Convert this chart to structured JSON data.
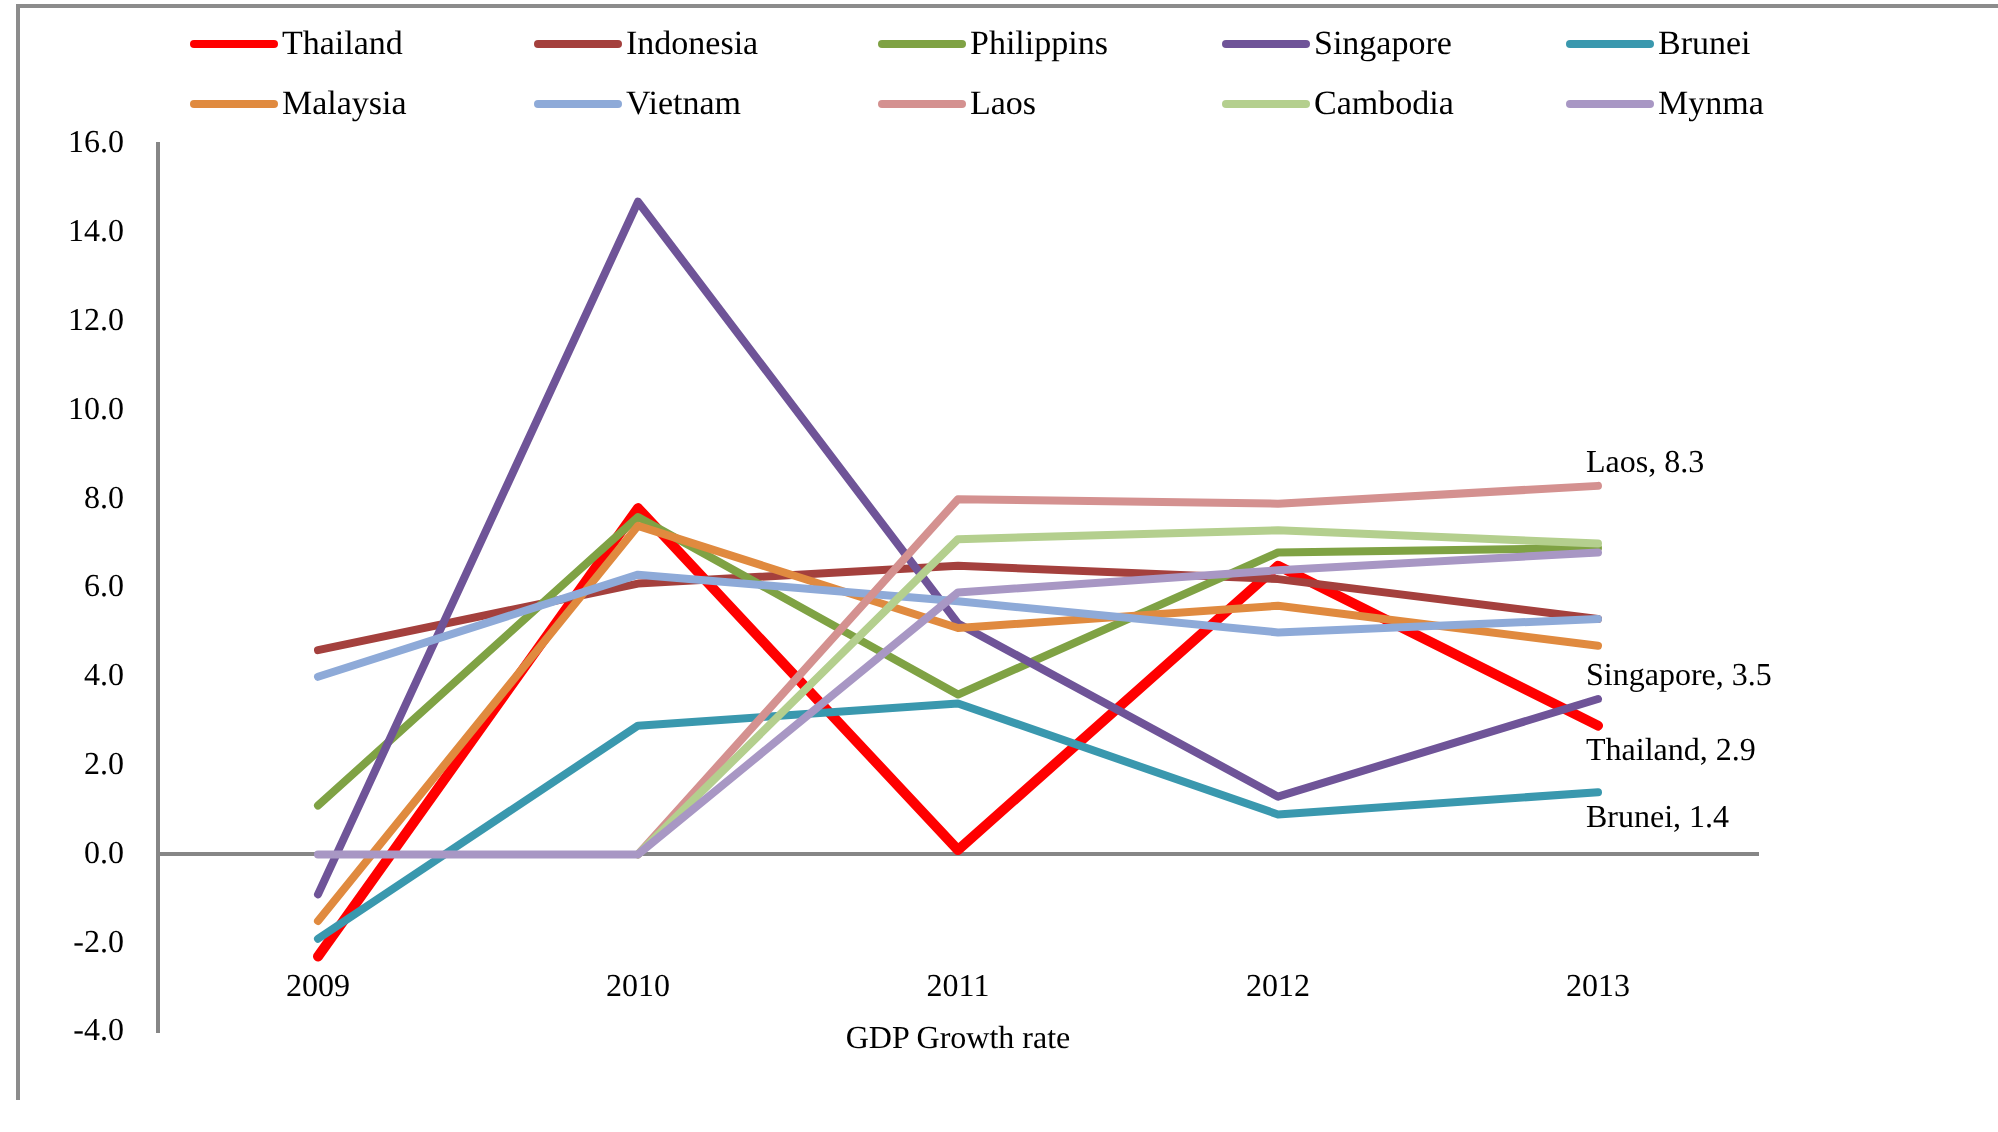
{
  "chart_data": {
    "type": "line",
    "xlabel": "GDP Growth rate",
    "categories": [
      "2009",
      "2010",
      "2011",
      "2012",
      "2013"
    ],
    "ylim": [
      -4,
      16
    ],
    "yticks": [
      {
        "value": -4,
        "label": "-4.0"
      },
      {
        "value": -2,
        "label": "-2.0"
      },
      {
        "value": 0,
        "label": "0.0"
      },
      {
        "value": 2,
        "label": "2.0"
      },
      {
        "value": 4,
        "label": "4.0"
      },
      {
        "value": 6,
        "label": "6.0"
      },
      {
        "value": 8,
        "label": "8.0"
      },
      {
        "value": 10,
        "label": "10.0"
      },
      {
        "value": 12,
        "label": "12.0"
      },
      {
        "value": 14,
        "label": "14.0"
      },
      {
        "value": 16,
        "label": "16.0"
      }
    ],
    "legend": "top",
    "marker": "none",
    "line_style": "solid",
    "series": [
      {
        "name": "Thailand",
        "color": "#ff0000",
        "values": [
          -2.3,
          7.8,
          0.1,
          6.5,
          2.9
        ],
        "value_labels": [
          null,
          null,
          null,
          null,
          "Thailand, 2.9"
        ]
      },
      {
        "name": "Indonesia",
        "color": "#a4403d",
        "values": [
          4.6,
          6.1,
          6.5,
          6.2,
          5.3
        ]
      },
      {
        "name": "Philippins",
        "color": "#7fa244",
        "values": [
          1.1,
          7.6,
          3.6,
          6.8,
          6.9
        ]
      },
      {
        "name": "Singapore",
        "color": "#6f5498",
        "values": [
          -0.9,
          14.7,
          5.2,
          1.3,
          3.5
        ],
        "value_labels": [
          null,
          null,
          null,
          null,
          "Singapore, 3.5"
        ]
      },
      {
        "name": "Brunei",
        "color": "#3a98ae",
        "values": [
          -1.9,
          2.9,
          3.4,
          0.9,
          1.4
        ],
        "value_labels": [
          null,
          null,
          null,
          null,
          "Brunei, 1.4"
        ]
      },
      {
        "name": "Malaysia",
        "color": "#e08a3f",
        "values": [
          -1.5,
          7.4,
          5.1,
          5.6,
          4.7
        ]
      },
      {
        "name": "Vietnam",
        "color": "#8eaad8",
        "values": [
          4.0,
          6.3,
          5.7,
          5.0,
          5.3
        ]
      },
      {
        "name": "Laos",
        "color": "#d49190",
        "values": [
          null,
          0,
          8.0,
          7.9,
          8.3
        ],
        "value_labels": [
          null,
          null,
          null,
          null,
          "Laos, 8.3"
        ]
      },
      {
        "name": "Cambodia",
        "color": "#b4cf8e",
        "values": [
          null,
          0,
          7.1,
          7.3,
          7.0
        ]
      },
      {
        "name": "Mynma",
        "color": "#a897c4",
        "values": [
          0,
          0,
          5.9,
          6.4,
          6.8
        ]
      }
    ]
  }
}
